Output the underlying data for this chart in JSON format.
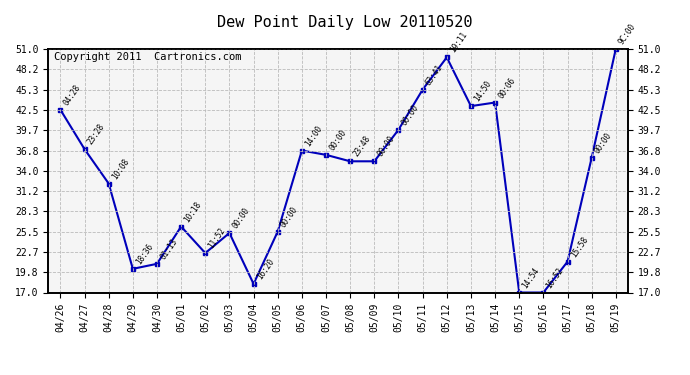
{
  "title": "Dew Point Daily Low 20110520",
  "copyright": "Copyright 2011  Cartronics.com",
  "dates": [
    "04/26",
    "04/27",
    "04/28",
    "04/29",
    "04/30",
    "05/01",
    "05/02",
    "05/03",
    "05/04",
    "05/05",
    "05/06",
    "05/07",
    "05/08",
    "05/09",
    "05/10",
    "05/11",
    "05/12",
    "05/13",
    "05/14",
    "05/15",
    "05/16",
    "05/17",
    "05/18",
    "05/19"
  ],
  "values": [
    42.5,
    37.0,
    32.2,
    20.3,
    21.0,
    26.2,
    22.5,
    25.3,
    18.2,
    25.5,
    36.8,
    36.2,
    35.3,
    35.3,
    39.7,
    45.3,
    49.8,
    43.0,
    43.5,
    17.0,
    17.0,
    21.3,
    35.8,
    51.0
  ],
  "labels": [
    "04:28",
    "23:28",
    "10:08",
    "18:36",
    "01:13",
    "10:18",
    "11:52",
    "00:00",
    "16:20",
    "00:00",
    "14:00",
    "00:00",
    "23:48",
    "00:00",
    "00:00",
    "63:41",
    "19:11",
    "14:50",
    "00:06",
    "14:54",
    "16:52",
    "15:58",
    "00:00",
    "9C:00"
  ],
  "yticks": [
    17.0,
    19.8,
    22.7,
    25.5,
    28.3,
    31.2,
    34.0,
    36.8,
    39.7,
    42.5,
    45.3,
    48.2,
    51.0
  ],
  "ymin": 17.0,
  "ymax": 51.0,
  "line_color": "#0000bb",
  "marker_color": "#0000bb",
  "bg_color": "#ffffff",
  "plot_bg_color": "#f5f5f5",
  "grid_color": "#bbbbbb",
  "title_fontsize": 11,
  "tick_fontsize": 7,
  "copyright_fontsize": 7.5
}
